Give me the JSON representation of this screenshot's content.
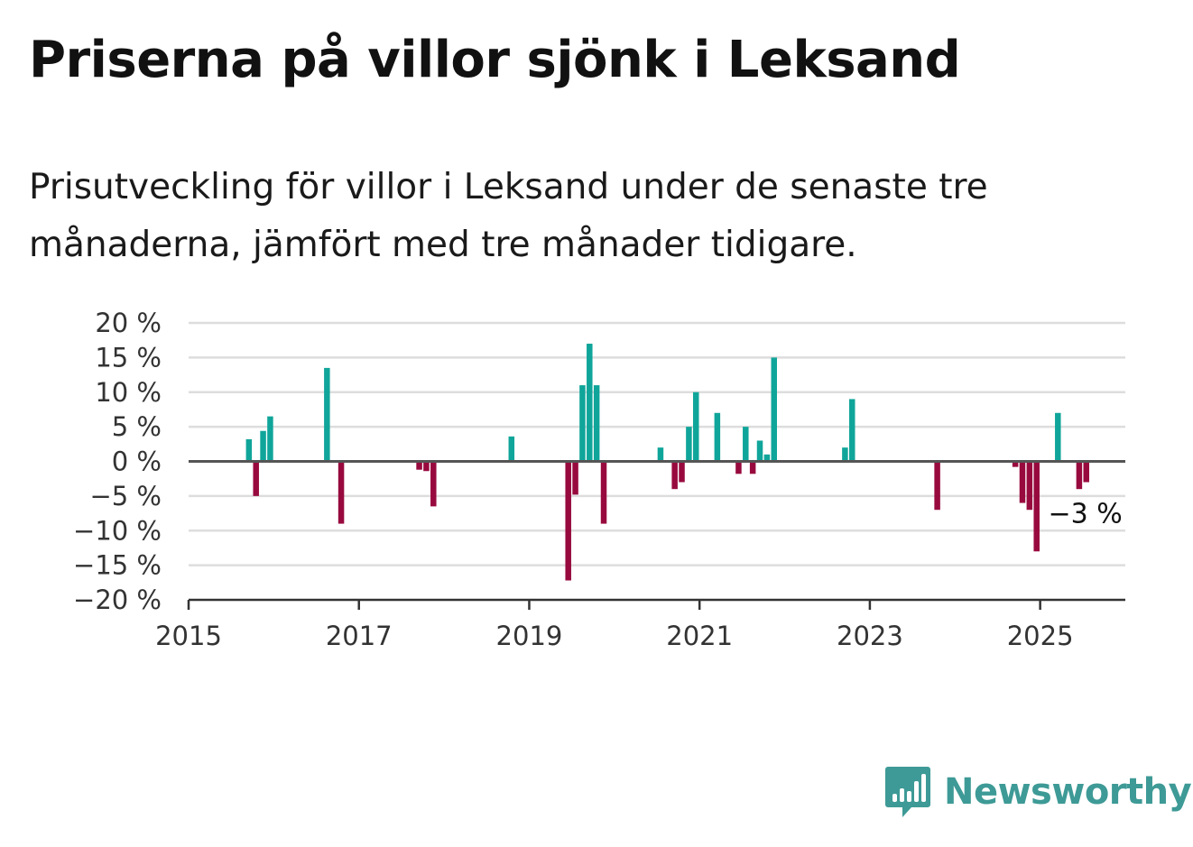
{
  "title": "Priserna på villor sjönk i Leksand",
  "subtitle": "Prisutveckling för villor i Leksand under de senaste tre månaderna, jämfört med tre månader tidigare.",
  "brand": {
    "name": "Newsworthy",
    "icon": "bar-chart-speech-bubble-icon"
  },
  "colors": {
    "positive": "#10a59a",
    "negative": "#980a3e",
    "grid": "#dddddd",
    "axis": "#333333",
    "brand": "#3e9a96"
  },
  "chart_data": {
    "type": "bar",
    "title": "",
    "xlabel": "",
    "ylabel": "",
    "unit": "%",
    "xlim": [
      "2015-01",
      "2026-01"
    ],
    "ylim": [
      -20,
      20
    ],
    "y_ticks": [
      20,
      15,
      10,
      5,
      0,
      -5,
      -10,
      -15,
      -20
    ],
    "y_tick_labels": [
      "20 %",
      "15 %",
      "10 %",
      "5 %",
      "0 %",
      "−5 %",
      "−10 %",
      "−15 %",
      "−20 %"
    ],
    "x_tick_labels": [
      "2015",
      "2017",
      "2019",
      "2021",
      "2023",
      "2025"
    ],
    "grid": true,
    "end_label": "−3 %",
    "points": [
      {
        "date": "2015-09",
        "value": 3.2
      },
      {
        "date": "2015-10",
        "value": -5
      },
      {
        "date": "2015-11",
        "value": 4.4
      },
      {
        "date": "2015-12",
        "value": 6.5
      },
      {
        "date": "2016-08",
        "value": 13.5
      },
      {
        "date": "2016-10",
        "value": -9
      },
      {
        "date": "2017-09",
        "value": -1.2
      },
      {
        "date": "2017-10",
        "value": -1.4
      },
      {
        "date": "2017-11",
        "value": -6.5
      },
      {
        "date": "2018-10",
        "value": 3.6
      },
      {
        "date": "2019-06",
        "value": -17.2
      },
      {
        "date": "2019-07",
        "value": -4.8
      },
      {
        "date": "2019-08",
        "value": 11
      },
      {
        "date": "2019-09",
        "value": 17
      },
      {
        "date": "2019-10",
        "value": 11
      },
      {
        "date": "2019-11",
        "value": -9
      },
      {
        "date": "2020-07",
        "value": 2
      },
      {
        "date": "2020-09",
        "value": -4
      },
      {
        "date": "2020-10",
        "value": -3
      },
      {
        "date": "2020-11",
        "value": 5
      },
      {
        "date": "2020-12",
        "value": 10
      },
      {
        "date": "2021-03",
        "value": 7
      },
      {
        "date": "2021-06",
        "value": -1.8
      },
      {
        "date": "2021-07",
        "value": 5
      },
      {
        "date": "2021-08",
        "value": -1.8
      },
      {
        "date": "2021-09",
        "value": 3
      },
      {
        "date": "2021-10",
        "value": 1
      },
      {
        "date": "2021-11",
        "value": 15
      },
      {
        "date": "2022-09",
        "value": 2
      },
      {
        "date": "2022-10",
        "value": 9
      },
      {
        "date": "2023-10",
        "value": -7
      },
      {
        "date": "2024-09",
        "value": -0.8
      },
      {
        "date": "2024-10",
        "value": -6
      },
      {
        "date": "2024-11",
        "value": -7
      },
      {
        "date": "2024-12",
        "value": -13
      },
      {
        "date": "2025-03",
        "value": 7
      },
      {
        "date": "2025-06",
        "value": -4
      },
      {
        "date": "2025-07",
        "value": -3
      }
    ]
  }
}
